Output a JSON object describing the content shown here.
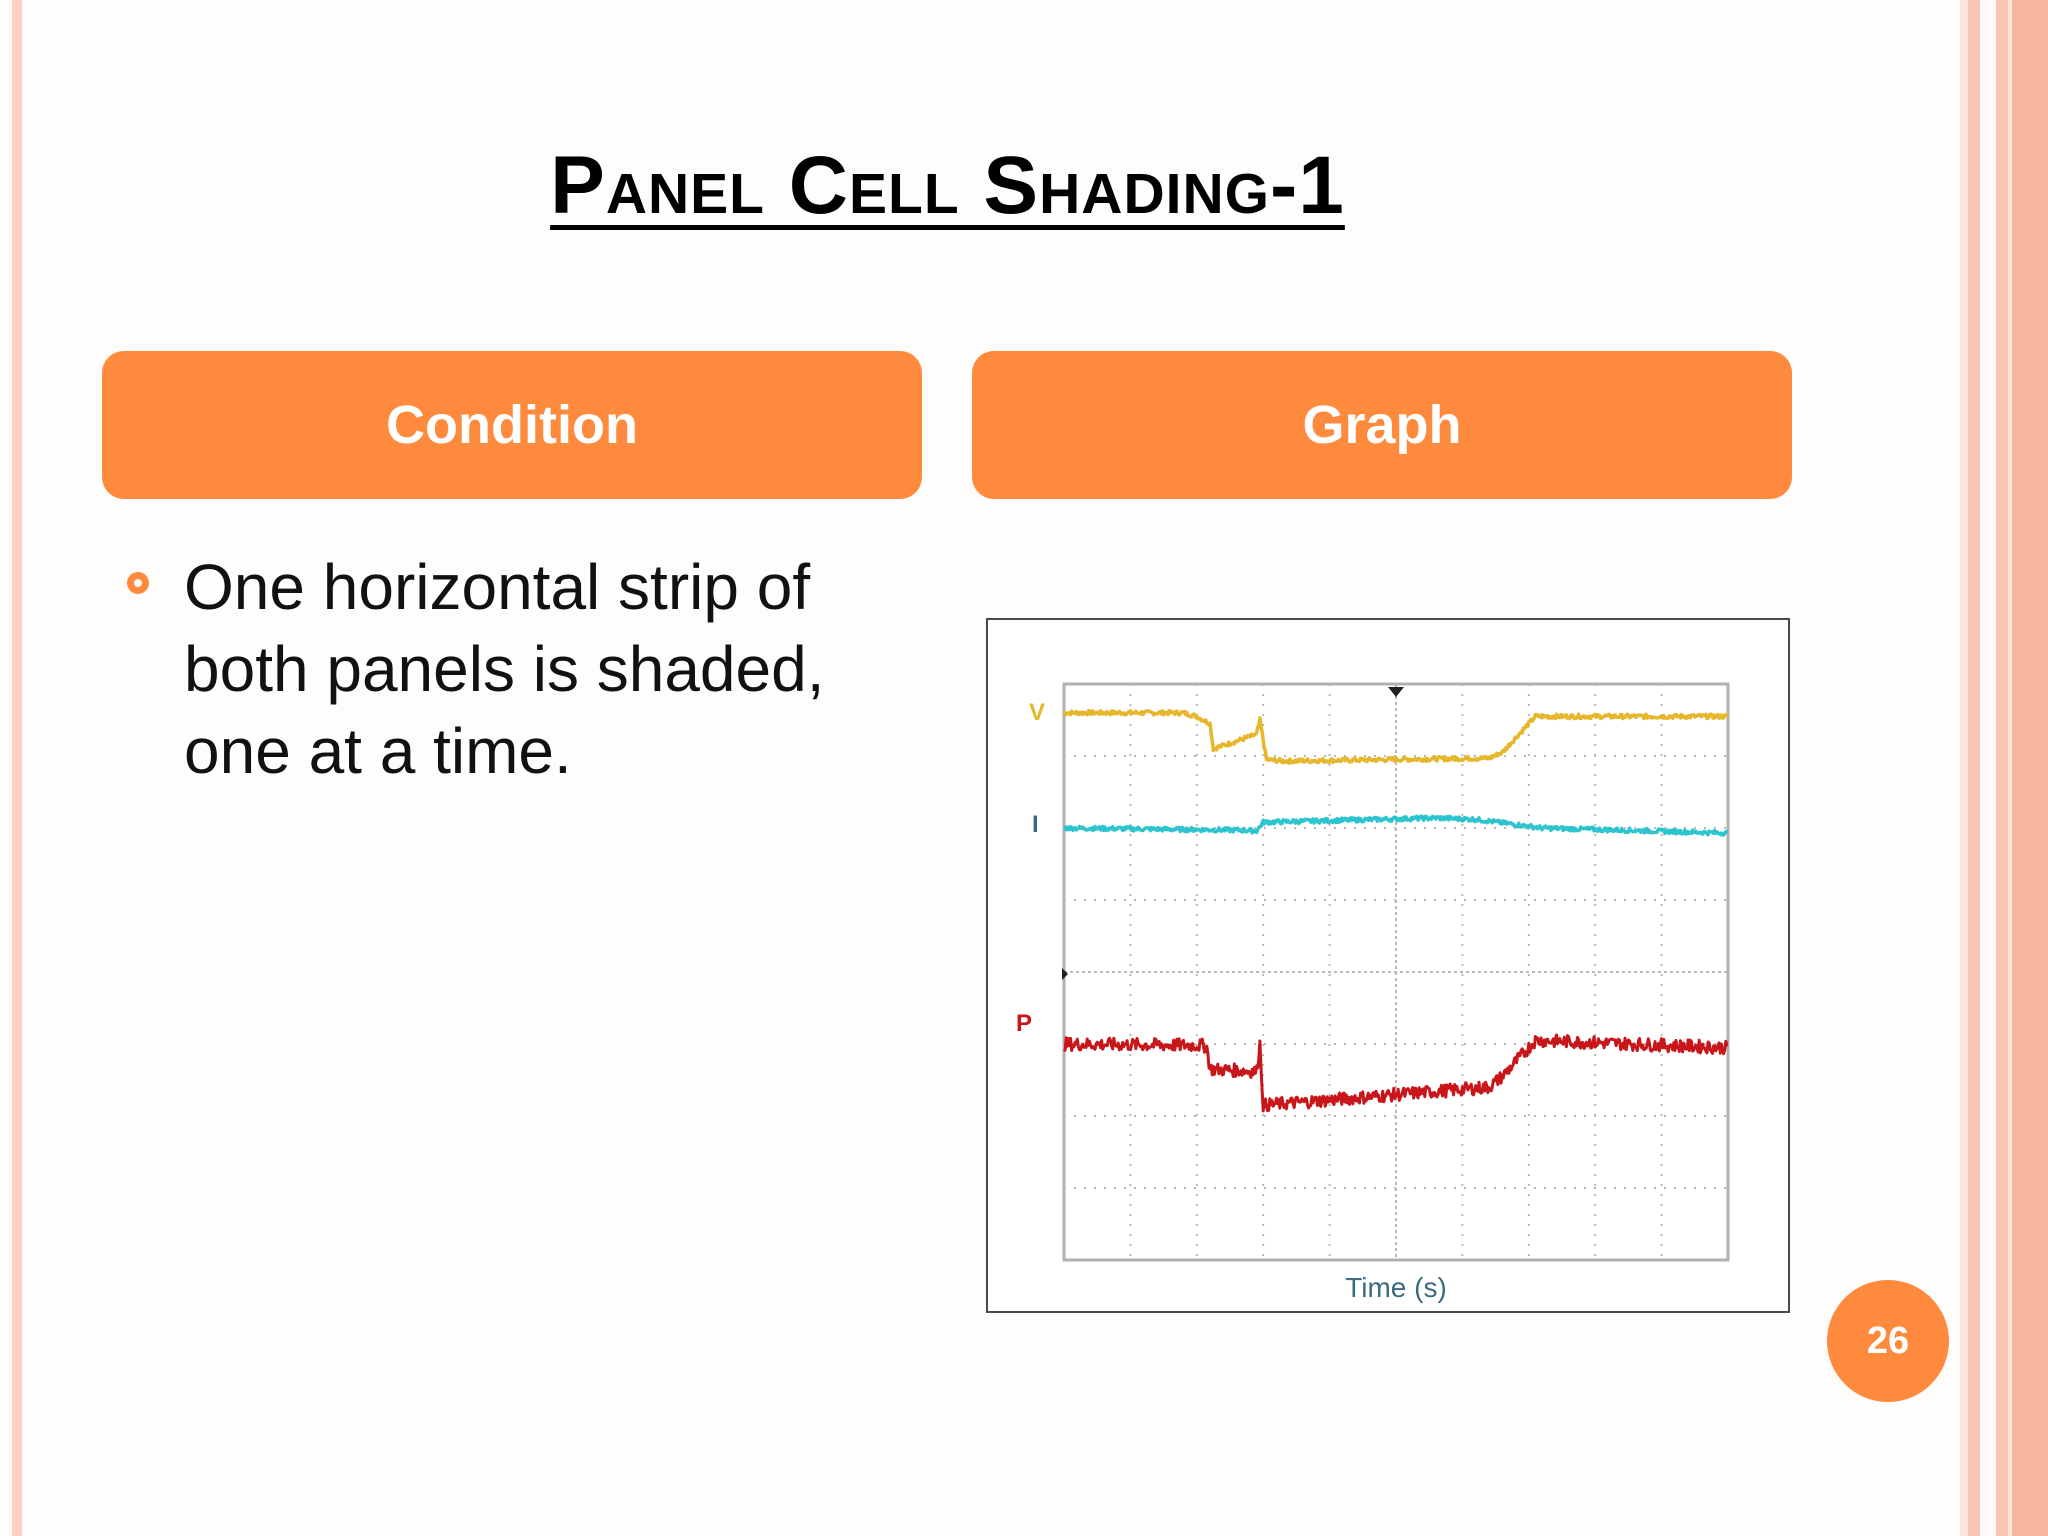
{
  "slide": {
    "title": "Panel Cell Shading-1",
    "page_number": "26"
  },
  "headers": {
    "condition": "Condition",
    "graph": "Graph"
  },
  "condition": {
    "bullet": "One horizontal strip of both panels is shaded, one at a time."
  },
  "colors": {
    "accent": "#fd8a3d",
    "title": "#000000",
    "border_pink": "#f9c5b5",
    "voltage_trace": "#e6b62b",
    "current_trace": "#2cc4cf",
    "power_trace": "#c8161b",
    "axis_text": "#3c6a80"
  },
  "chart_data": {
    "type": "line",
    "xlabel": "Time (s)",
    "ylabel": "",
    "grid": true,
    "x_divisions": 10,
    "y_divisions": 8,
    "series": [
      {
        "name": "V",
        "x": [
          0,
          1.8,
          2.0,
          2.2,
          2.25,
          2.9,
          2.95,
          3.05,
          3.3,
          6.4,
          6.6,
          7.1,
          10
        ],
        "y": [
          7.6,
          7.6,
          7.55,
          7.45,
          7.1,
          7.3,
          7.5,
          6.95,
          6.93,
          6.97,
          7.05,
          7.55,
          7.55
        ]
      },
      {
        "name": "I",
        "x": [
          0,
          2.7,
          2.9,
          3.0,
          5.6,
          6.2,
          7.2,
          10
        ],
        "y": [
          6.0,
          5.97,
          5.96,
          6.08,
          6.14,
          6.12,
          6.0,
          5.93
        ]
      },
      {
        "name": "P",
        "x": [
          0,
          2.1,
          2.15,
          2.2,
          2.9,
          2.95,
          3.0,
          6.4,
          6.6,
          7.1,
          10
        ],
        "y": [
          3.0,
          2.98,
          2.95,
          2.65,
          2.62,
          3.0,
          2.15,
          2.4,
          2.55,
          3.05,
          2.95
        ]
      }
    ]
  }
}
